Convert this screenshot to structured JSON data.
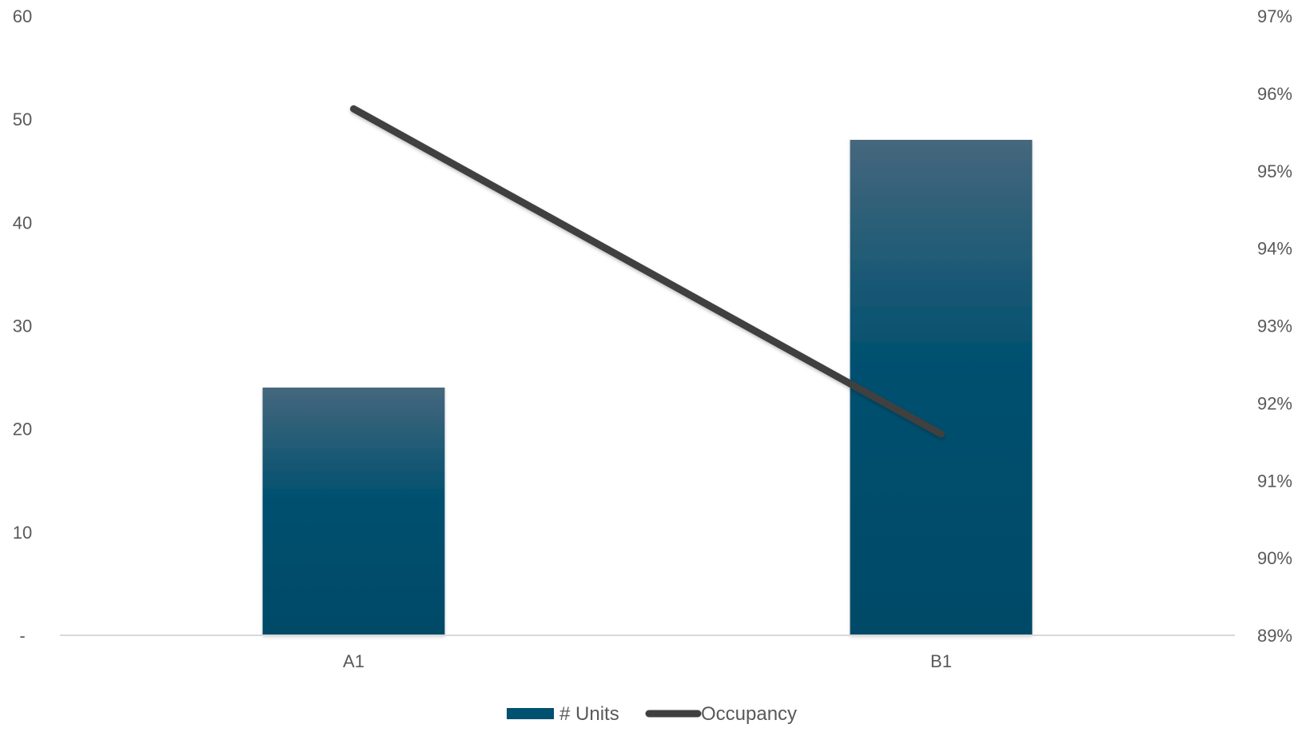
{
  "chart_data": {
    "type": "bar",
    "categories": [
      "A1",
      "B1"
    ],
    "series": [
      {
        "name": "# Units",
        "type": "bar",
        "axis": "left",
        "values": [
          24,
          48
        ],
        "color": "#005070"
      },
      {
        "name": "Occupancy",
        "type": "line",
        "axis": "right",
        "values": [
          0.958,
          0.916
        ],
        "color": "#404040"
      }
    ],
    "left_axis": {
      "ylim": [
        0,
        60
      ],
      "ticks": [
        0,
        10,
        20,
        30,
        40,
        50,
        60
      ],
      "tick_labels": [
        "-",
        "10",
        "20",
        "30",
        "40",
        "50",
        "60"
      ]
    },
    "right_axis": {
      "ylim": [
        0.89,
        0.97
      ],
      "ticks": [
        0.89,
        0.9,
        0.91,
        0.92,
        0.93,
        0.94,
        0.95,
        0.96,
        0.97
      ],
      "tick_labels": [
        "89%",
        "90%",
        "91%",
        "92%",
        "93%",
        "94%",
        "95%",
        "96%",
        "97%"
      ]
    },
    "grid": false,
    "legend_position": "bottom-center",
    "title": "",
    "xlabel": "",
    "ylabel": ""
  }
}
